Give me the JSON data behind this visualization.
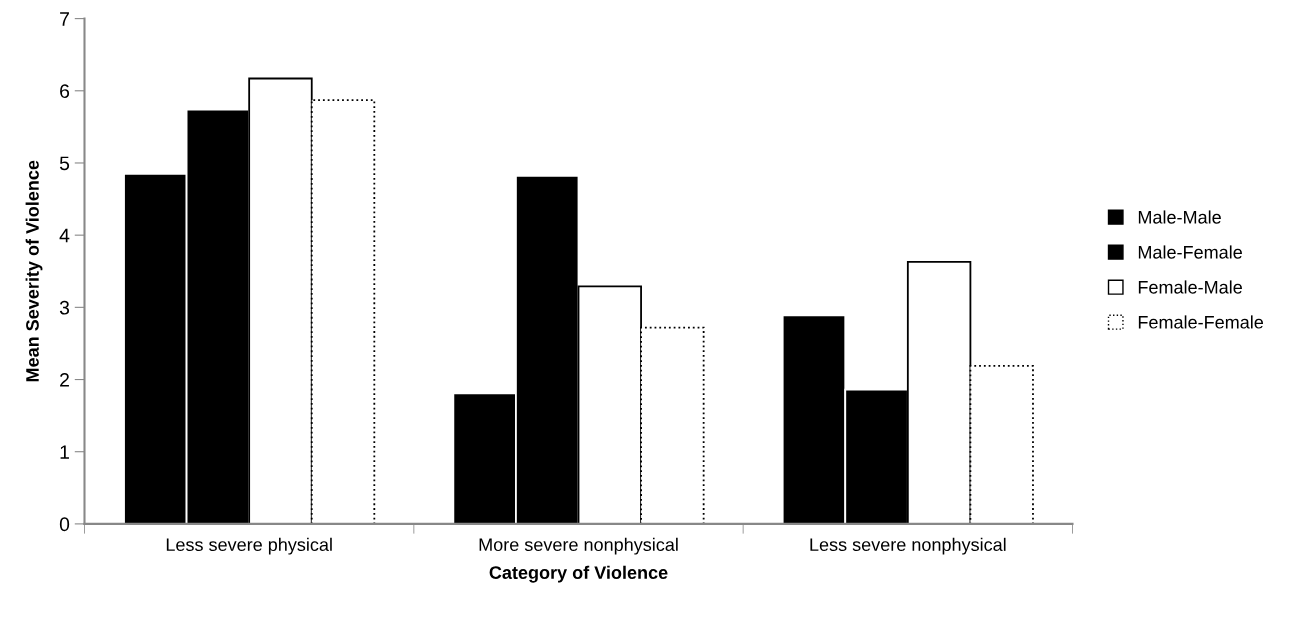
{
  "chart_data": {
    "type": "bar",
    "xlabel": "Category of Violence",
    "ylabel": "Mean Severity of Violence",
    "categories": [
      "Less severe physical",
      "More severe nonphysical",
      "Less severe nonphysical"
    ],
    "series": [
      {
        "name": "Male-Male",
        "color": "#000000",
        "line_style": "solid",
        "values": [
          4.85,
          1.81,
          2.89
        ]
      },
      {
        "name": "Male-Female",
        "color": "#000000",
        "line_style": "solid",
        "values": [
          5.74,
          4.82,
          1.86
        ]
      },
      {
        "name": "Female-Male",
        "color": "#ffffff",
        "line_style": "solid",
        "values": [
          6.17,
          3.29,
          3.63
        ]
      },
      {
        "name": "Female-Female",
        "color": "#ffffff",
        "line_style": "dotted",
        "values": [
          5.87,
          2.72,
          2.19
        ]
      }
    ],
    "ylim": [
      0,
      7
    ],
    "yticks": [
      0,
      1,
      2,
      3,
      4,
      5,
      6,
      7
    ],
    "grid": false,
    "legend": "right"
  }
}
